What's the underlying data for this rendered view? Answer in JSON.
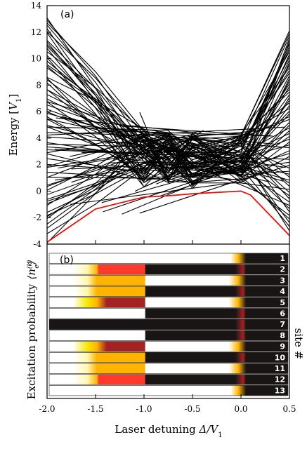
{
  "chart_data": [
    {
      "type": "line",
      "panel": "(a)",
      "ylabel": "Energy [V1]",
      "ylabel_parts": {
        "main": "Energy [",
        "sym": "V",
        "sub": "1",
        "end": "]"
      },
      "xlim": [
        -2.0,
        0.5
      ],
      "ylim": [
        -4,
        14
      ],
      "yticks": [
        "-4",
        "-2",
        "0",
        "2",
        "4",
        "6",
        "8",
        "10",
        "12",
        "14"
      ],
      "ytick_values": [
        -4,
        -2,
        0,
        2,
        4,
        6,
        8,
        10,
        12,
        14
      ],
      "xtick_values": [
        -2.0,
        -1.5,
        -1.0,
        -0.5,
        0.0,
        0.5
      ],
      "line_color": "#000000",
      "ground_color": "#e8100c",
      "ground_state": {
        "x": [
          -2.0,
          -1.5,
          -1.0,
          -0.75,
          -0.5,
          0.0,
          0.1,
          0.5
        ],
        "y": [
          -3.85,
          -1.35,
          -0.45,
          -0.35,
          -0.2,
          0.0,
          -0.3,
          -3.35
        ]
      },
      "levels_note_generated": true
    },
    {
      "type": "heatmap",
      "panel": "(b)",
      "ylabel": "Excitation probability",
      "ylabel_sym": "⟨n_e^(k)⟩",
      "right_label": "site #",
      "xlabel": "Laser detuning Δ/V1",
      "xlabel_parts": {
        "main": "Laser detuning ",
        "sym": "Δ/V",
        "sub": "1"
      },
      "xlim": [
        -2.0,
        0.5
      ],
      "xticks": [
        "-2.0",
        "-1.5",
        "-1.0",
        "-0.5",
        "0.0",
        "0.5"
      ],
      "xtick_values": [
        -2.0,
        -1.5,
        -1.0,
        -0.5,
        0.0,
        0.5
      ],
      "sites": [
        "1",
        "2",
        "3",
        "4",
        "5",
        "6",
        "7",
        "8",
        "9",
        "10",
        "11",
        "12",
        "13"
      ],
      "colormap": [
        "#ffffff",
        "#fff8b0",
        "#f5e800",
        "#ffb400",
        "#ff3a2a",
        "#a42222",
        "#1a1515"
      ],
      "pattern_per_site": [
        "A",
        "B",
        "C",
        "D",
        "E",
        "F",
        "G",
        "H",
        "E",
        "D",
        "C",
        "B",
        "A"
      ],
      "patterns": {
        "A": [
          [
            -2.0,
            0
          ],
          [
            -0.1,
            0
          ],
          [
            -0.02,
            0.5
          ],
          [
            0.06,
            1
          ],
          [
            0.5,
            1
          ]
        ],
        "B": [
          [
            -2.0,
            0
          ],
          [
            -1.75,
            0
          ],
          [
            -1.6,
            0.2
          ],
          [
            -1.5,
            0.55
          ],
          [
            -1.48,
            0.7
          ],
          [
            -1.0,
            0.7
          ],
          [
            -0.99,
            1
          ],
          [
            -0.05,
            1
          ],
          [
            0.03,
            0.8
          ],
          [
            0.06,
            1
          ],
          [
            0.5,
            1
          ]
        ],
        "C": [
          [
            -2.0,
            0
          ],
          [
            -1.75,
            0
          ],
          [
            -1.6,
            0.2
          ],
          [
            -1.5,
            0.45
          ],
          [
            -1.0,
            0.55
          ],
          [
            -0.99,
            0
          ],
          [
            -0.12,
            0
          ],
          [
            -0.02,
            0.5
          ],
          [
            0.06,
            1
          ],
          [
            0.5,
            1
          ]
        ],
        "D": [
          [
            -2.0,
            0
          ],
          [
            -1.75,
            0
          ],
          [
            -1.6,
            0.2
          ],
          [
            -1.5,
            0.42
          ],
          [
            -1.2,
            0.45
          ],
          [
            -1.0,
            0.45
          ],
          [
            -0.99,
            1
          ],
          [
            -0.05,
            1
          ],
          [
            0.03,
            0.8
          ],
          [
            0.06,
            1
          ],
          [
            0.5,
            1
          ]
        ],
        "E": [
          [
            -2.0,
            0
          ],
          [
            -1.75,
            0
          ],
          [
            -1.6,
            0.25
          ],
          [
            -1.5,
            0.5
          ],
          [
            -1.4,
            0.85
          ],
          [
            -1.0,
            0.9
          ],
          [
            -0.99,
            0
          ],
          [
            -0.12,
            0
          ],
          [
            -0.02,
            0.5
          ],
          [
            0.06,
            1
          ],
          [
            0.5,
            1
          ]
        ],
        "F": [
          [
            -2.0,
            0
          ],
          [
            -1.0,
            0
          ],
          [
            -0.99,
            1
          ],
          [
            -0.05,
            1
          ],
          [
            0.03,
            0.8
          ],
          [
            0.06,
            1
          ],
          [
            0.5,
            1
          ]
        ],
        "G": [
          [
            -2.0,
            0.95
          ],
          [
            -1.98,
            1
          ],
          [
            -1.0,
            1
          ],
          [
            -0.99,
            1
          ],
          [
            -0.05,
            1
          ],
          [
            0.03,
            0.75
          ],
          [
            0.06,
            1
          ],
          [
            0.5,
            1
          ]
        ],
        "H": [
          [
            -2.0,
            0
          ],
          [
            -1.0,
            0
          ],
          [
            -0.99,
            1
          ],
          [
            -0.05,
            1
          ],
          [
            0.03,
            0.8
          ],
          [
            0.06,
            1
          ],
          [
            0.5,
            1
          ]
        ]
      }
    }
  ]
}
